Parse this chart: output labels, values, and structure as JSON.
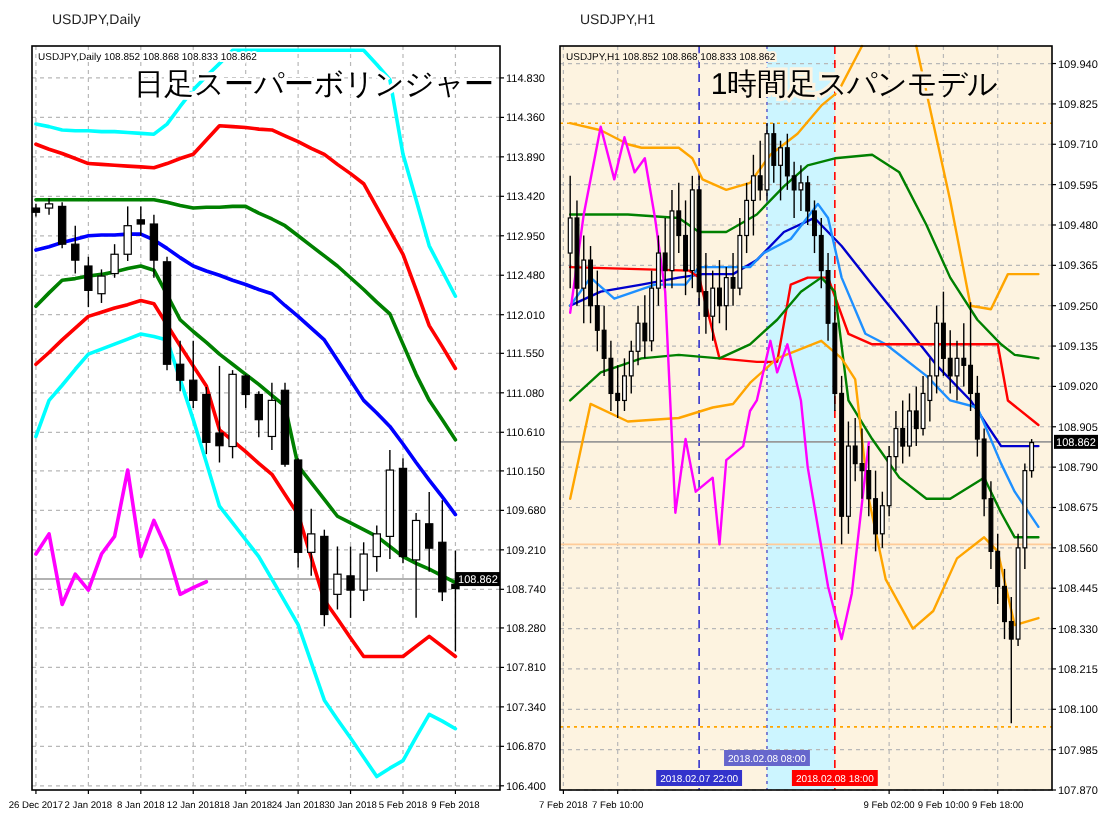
{
  "chart_data": [
    {
      "type": "candlestick",
      "title": "USDJPY,Daily",
      "subtitle": "USDJPY,Daily  108.852 108.868 108.833 108.862",
      "annotations": [
        "日足スーパーボリンジャー"
      ],
      "categories": [
        "26 Dec 2017",
        null,
        null,
        null,
        "2 Jan 2018",
        null,
        null,
        null,
        "8 Jan 2018",
        null,
        null,
        null,
        "12 Jan 2018",
        null,
        null,
        null,
        "18 Jan 2018",
        null,
        null,
        null,
        "24 Jan 2018",
        null,
        null,
        null,
        "30 Jan 2018",
        null,
        null,
        null,
        "5 Feb 2018",
        null,
        null,
        null,
        "9 Feb 2018"
      ],
      "ohlc": [
        [
          113.28,
          113.33,
          113.18,
          113.23
        ],
        [
          113.28,
          113.4,
          113.2,
          113.33
        ],
        [
          113.3,
          113.35,
          112.8,
          112.85
        ],
        [
          112.85,
          113.07,
          112.5,
          112.66
        ],
        [
          112.59,
          112.7,
          112.1,
          112.3
        ],
        [
          112.26,
          112.55,
          112.15,
          112.47
        ],
        [
          112.5,
          112.85,
          112.45,
          112.73
        ],
        [
          112.73,
          113.3,
          112.65,
          113.07
        ],
        [
          113.14,
          113.3,
          112.95,
          113.09
        ],
        [
          113.09,
          113.2,
          112.45,
          112.66
        ],
        [
          112.64,
          112.7,
          111.35,
          111.42
        ],
        [
          111.42,
          111.7,
          111.1,
          111.23
        ],
        [
          111.23,
          111.7,
          110.9,
          110.99
        ],
        [
          111.06,
          111.15,
          110.35,
          110.49
        ],
        [
          110.6,
          111.4,
          110.25,
          110.45
        ],
        [
          110.44,
          111.35,
          110.3,
          111.3
        ],
        [
          111.28,
          111.3,
          110.9,
          111.06
        ],
        [
          111.06,
          111.1,
          110.55,
          110.76
        ],
        [
          110.56,
          111.2,
          110.4,
          110.99
        ],
        [
          111.11,
          111.2,
          110.2,
          110.23
        ],
        [
          110.28,
          110.3,
          109.0,
          109.18
        ],
        [
          109.18,
          109.7,
          108.9,
          109.4
        ],
        [
          109.37,
          109.45,
          108.3,
          108.44
        ],
        [
          108.68,
          109.25,
          108.5,
          108.92
        ],
        [
          108.9,
          109.25,
          108.4,
          108.73
        ],
        [
          108.73,
          109.3,
          108.6,
          109.16
        ],
        [
          109.13,
          109.5,
          108.95,
          109.4
        ],
        [
          109.37,
          110.4,
          109.1,
          110.16
        ],
        [
          110.18,
          110.3,
          109.05,
          109.13
        ],
        [
          109.09,
          109.65,
          108.4,
          109.56
        ],
        [
          109.52,
          109.9,
          108.95,
          109.23
        ],
        [
          109.3,
          109.8,
          108.6,
          108.71
        ],
        [
          108.8,
          109.2,
          108.0,
          108.75
        ]
      ],
      "series": [
        {
          "type": "line",
          "color": "#00ffff",
          "values": [
            114.28,
            114.25,
            114.21,
            114.2,
            114.2,
            114.19,
            114.19,
            114.18,
            114.17,
            114.16,
            114.28,
            114.49,
            114.69,
            114.85,
            115.0,
            115.16,
            115.16,
            115.16,
            115.16,
            115.16,
            115.16,
            115.16,
            115.16,
            115.16,
            115.16,
            115.16,
            114.99,
            114.81,
            113.92,
            113.38,
            112.83,
            112.53,
            112.23
          ]
        },
        {
          "type": "line",
          "color": "#ff0000",
          "values": [
            114.04,
            113.98,
            113.93,
            113.87,
            113.81,
            113.8,
            113.79,
            113.78,
            113.77,
            113.76,
            113.81,
            113.87,
            113.92,
            114.09,
            114.26,
            114.25,
            114.24,
            114.22,
            114.21,
            114.14,
            114.07,
            113.99,
            113.92,
            113.8,
            113.69,
            113.57,
            113.29,
            113.01,
            112.73,
            112.31,
            111.88,
            111.63,
            111.37
          ]
        },
        {
          "type": "line",
          "color": "#008000",
          "values": [
            113.38,
            113.38,
            113.38,
            113.38,
            113.38,
            113.38,
            113.38,
            113.38,
            113.38,
            113.38,
            113.35,
            113.31,
            113.28,
            113.29,
            113.29,
            113.3,
            113.3,
            113.22,
            113.15,
            113.07,
            112.95,
            112.83,
            112.71,
            112.59,
            112.45,
            112.31,
            112.16,
            112.02,
            111.66,
            111.3,
            110.99,
            110.76,
            110.52
          ]
        },
        {
          "type": "line",
          "color": "#0000ff",
          "values": [
            112.78,
            112.82,
            112.87,
            112.91,
            112.95,
            112.96,
            112.96,
            112.97,
            112.97,
            112.9,
            112.8,
            112.69,
            112.59,
            112.53,
            112.48,
            112.42,
            112.37,
            112.31,
            112.26,
            112.12,
            111.99,
            111.85,
            111.71,
            111.47,
            111.23,
            110.99,
            110.84,
            110.68,
            110.47,
            110.25,
            110.04,
            109.84,
            109.63
          ]
        },
        {
          "type": "line",
          "color": "#008000",
          "values": [
            112.11,
            112.27,
            112.42,
            112.44,
            112.47,
            112.49,
            112.52,
            112.56,
            112.59,
            112.54,
            112.25,
            111.95,
            111.81,
            111.68,
            111.54,
            111.42,
            111.3,
            111.18,
            111.05,
            110.92,
            110.21,
            110.01,
            109.81,
            109.61,
            109.53,
            109.45,
            109.37,
            109.25,
            109.13,
            109.05,
            108.98,
            108.9,
            108.82
          ]
        },
        {
          "type": "line",
          "color": "#ff0000",
          "values": [
            111.42,
            111.56,
            111.71,
            111.85,
            111.99,
            112.04,
            112.09,
            112.13,
            112.18,
            112.14,
            111.89,
            111.64,
            111.4,
            111.16,
            110.64,
            110.51,
            110.38,
            110.24,
            110.11,
            109.87,
            109.63,
            109.12,
            108.61,
            108.39,
            108.16,
            107.94,
            107.94,
            107.94,
            107.94,
            108.06,
            108.18,
            108.06,
            107.94
          ]
        },
        {
          "type": "line",
          "color": "#00ffff",
          "values": [
            110.56,
            110.99,
            111.17,
            111.36,
            111.54,
            111.6,
            111.66,
            111.72,
            111.78,
            111.75,
            111.71,
            111.24,
            110.76,
            110.25,
            109.73,
            109.53,
            109.33,
            109.13,
            108.86,
            108.59,
            108.32,
            107.87,
            107.42,
            107.19,
            106.97,
            106.74,
            106.51,
            106.61,
            106.7,
            106.98,
            107.25,
            107.17,
            107.08
          ]
        },
        {
          "type": "line",
          "color": "#ff00ff",
          "values": [
            109.16,
            109.4,
            108.56,
            108.92,
            108.73,
            109.16,
            109.37,
            110.16,
            109.13,
            109.56,
            109.21,
            108.68,
            108.76,
            108.83,
            null,
            null,
            null,
            null,
            null,
            null,
            null,
            null,
            null,
            null,
            null,
            null,
            null,
            null,
            null,
            null,
            null,
            null,
            null
          ]
        }
      ],
      "ylim": [
        106.35,
        115.21
      ],
      "yticks": [
        {
          "value": 114.83,
          "label": "114.830"
        },
        {
          "value": 114.36,
          "label": "114.360"
        },
        {
          "value": 113.89,
          "label": "113.890"
        },
        {
          "value": 113.42,
          "label": "113.420"
        },
        {
          "value": 112.95,
          "label": "112.950"
        },
        {
          "value": 112.48,
          "label": "112.480"
        },
        {
          "value": 112.01,
          "label": "112.010"
        },
        {
          "value": 111.55,
          "label": "111.550"
        },
        {
          "value": 111.08,
          "label": "111.080"
        },
        {
          "value": 110.61,
          "label": "110.610"
        },
        {
          "value": 110.15,
          "label": "110.150"
        },
        {
          "value": 109.68,
          "label": "109.680"
        },
        {
          "value": 109.21,
          "label": "109.210"
        },
        {
          "value": 108.74,
          "label": "108.740"
        },
        {
          "value": 108.28,
          "label": "108.280"
        },
        {
          "value": 107.81,
          "label": "107.810"
        },
        {
          "value": 107.34,
          "label": "107.340"
        },
        {
          "value": 106.87,
          "label": "106.870"
        },
        {
          "value": 106.4,
          "label": "106.400"
        }
      ],
      "ref_lines": [
        {
          "axis": "y",
          "value": 108.862,
          "label": "108.862",
          "color": "#999999",
          "line_style": "solid"
        }
      ],
      "grid": true
    },
    {
      "type": "candlestick",
      "title": "USDJPY,H1",
      "subtitle": "USDJPY,H1  108.852 108.868 108.833 108.862",
      "annotations": [
        "1時間足スパンモデル"
      ],
      "x": [
        "2018-02-07T03:00",
        "2018-02-07T04:00",
        "2018-02-07T05:00",
        "2018-02-07T06:00",
        "2018-02-07T07:00",
        "2018-02-07T08:00",
        "2018-02-07T09:00",
        "2018-02-07T10:00",
        "2018-02-07T11:00",
        "2018-02-07T12:00",
        "2018-02-07T13:00",
        "2018-02-07T14:00",
        "2018-02-07T15:00",
        "2018-02-07T16:00",
        "2018-02-07T17:00",
        "2018-02-07T18:00",
        "2018-02-07T19:00",
        "2018-02-07T20:00",
        "2018-02-07T21:00",
        "2018-02-07T22:00",
        "2018-02-07T23:00",
        "2018-02-08T00:00",
        "2018-02-08T01:00",
        "2018-02-08T02:00",
        "2018-02-08T03:00",
        "2018-02-08T04:00",
        "2018-02-08T05:00",
        "2018-02-08T06:00",
        "2018-02-08T07:00",
        "2018-02-08T08:00",
        "2018-02-08T09:00",
        "2018-02-08T10:00",
        "2018-02-08T11:00",
        "2018-02-08T12:00",
        "2018-02-08T13:00",
        "2018-02-08T14:00",
        "2018-02-08T15:00",
        "2018-02-08T16:00",
        "2018-02-08T17:00",
        "2018-02-08T18:00",
        "2018-02-08T19:00",
        "2018-02-08T20:00",
        "2018-02-08T21:00",
        "2018-02-08T22:00",
        "2018-02-08T23:00",
        "2018-02-09T00:00",
        "2018-02-09T01:00",
        "2018-02-09T02:00",
        "2018-02-09T03:00",
        "2018-02-09T04:00",
        "2018-02-09T05:00",
        "2018-02-09T06:00",
        "2018-02-09T07:00",
        "2018-02-09T08:00",
        "2018-02-09T09:00",
        "2018-02-09T10:00",
        "2018-02-09T11:00",
        "2018-02-09T12:00",
        "2018-02-09T13:00",
        "2018-02-09T14:00",
        "2018-02-09T15:00",
        "2018-02-09T16:00",
        "2018-02-09T17:00",
        "2018-02-09T18:00",
        "2018-02-09T19:00",
        "2018-02-09T20:00",
        "2018-02-09T21:00",
        "2018-02-09T22:00",
        "2018-02-09T23:00"
      ],
      "ohlc": [
        [
          109.4,
          109.62,
          109.3,
          109.5
        ],
        [
          109.5,
          109.55,
          109.25,
          109.3
        ],
        [
          109.3,
          109.45,
          109.2,
          109.38
        ],
        [
          109.38,
          109.42,
          109.2,
          109.25
        ],
        [
          109.25,
          109.35,
          109.12,
          109.18
        ],
        [
          109.18,
          109.25,
          109.05,
          109.1
        ],
        [
          109.1,
          109.15,
          108.95,
          109.0
        ],
        [
          109.0,
          109.08,
          108.93,
          108.98
        ],
        [
          108.98,
          109.1,
          108.95,
          109.05
        ],
        [
          109.05,
          109.15,
          109.0,
          109.12
        ],
        [
          109.12,
          109.25,
          109.08,
          109.2
        ],
        [
          109.2,
          109.28,
          109.1,
          109.15
        ],
        [
          109.15,
          109.35,
          109.12,
          109.3
        ],
        [
          109.3,
          109.45,
          109.25,
          109.4
        ],
        [
          109.4,
          109.5,
          109.3,
          109.35
        ],
        [
          109.35,
          109.58,
          109.3,
          109.52
        ],
        [
          109.52,
          109.6,
          109.4,
          109.45
        ],
        [
          109.45,
          109.55,
          109.28,
          109.35
        ],
        [
          109.35,
          109.62,
          109.3,
          109.58
        ],
        [
          109.58,
          109.62,
          109.25,
          109.29
        ],
        [
          109.29,
          109.4,
          109.17,
          109.22
        ],
        [
          109.22,
          109.35,
          109.15,
          109.3
        ],
        [
          109.3,
          109.38,
          109.2,
          109.25
        ],
        [
          109.25,
          109.36,
          109.18,
          109.33
        ],
        [
          109.33,
          109.4,
          109.25,
          109.3
        ],
        [
          109.3,
          109.5,
          109.28,
          109.45
        ],
        [
          109.45,
          109.6,
          109.4,
          109.55
        ],
        [
          109.55,
          109.68,
          109.45,
          109.62
        ],
        [
          109.62,
          109.72,
          109.55,
          109.58
        ],
        [
          109.58,
          109.77,
          109.55,
          109.74
        ],
        [
          109.74,
          109.77,
          109.6,
          109.65
        ],
        [
          109.65,
          109.72,
          109.55,
          109.7
        ],
        [
          109.7,
          109.74,
          109.58,
          109.62
        ],
        [
          109.62,
          109.66,
          109.5,
          109.58
        ],
        [
          109.58,
          109.65,
          109.52,
          109.6
        ],
        [
          109.6,
          109.62,
          109.48,
          109.52
        ],
        [
          109.52,
          109.55,
          109.4,
          109.45
        ],
        [
          109.45,
          109.5,
          109.3,
          109.35
        ],
        [
          109.35,
          109.4,
          109.15,
          109.2
        ],
        [
          109.2,
          109.25,
          108.95,
          109.0
        ],
        [
          109.0,
          109.05,
          108.57,
          108.65
        ],
        [
          108.65,
          108.92,
          108.6,
          108.85
        ],
        [
          108.85,
          108.93,
          108.75,
          108.8
        ],
        [
          108.8,
          108.9,
          108.7,
          108.78
        ],
        [
          108.78,
          108.85,
          108.65,
          108.7
        ],
        [
          108.7,
          108.78,
          108.55,
          108.6
        ],
        [
          108.6,
          108.72,
          108.56,
          108.68
        ],
        [
          108.68,
          108.85,
          108.65,
          108.82
        ],
        [
          108.82,
          108.95,
          108.78,
          108.9
        ],
        [
          108.9,
          108.98,
          108.8,
          108.85
        ],
        [
          108.85,
          109.0,
          108.82,
          108.95
        ],
        [
          108.95,
          109.02,
          108.85,
          108.9
        ],
        [
          108.9,
          109.05,
          108.88,
          109.0
        ],
        [
          108.98,
          109.1,
          108.92,
          109.05
        ],
        [
          109.05,
          109.25,
          109.0,
          109.2
        ],
        [
          109.2,
          109.29,
          109.05,
          109.1
        ],
        [
          109.1,
          109.18,
          109.0,
          109.05
        ],
        [
          109.05,
          109.15,
          108.98,
          109.1
        ],
        [
          109.1,
          109.2,
          109.02,
          109.08
        ],
        [
          109.08,
          109.26,
          108.95,
          109.0
        ],
        [
          109.0,
          109.05,
          108.82,
          108.87
        ],
        [
          108.87,
          108.9,
          108.65,
          108.7
        ],
        [
          108.7,
          108.75,
          108.5,
          108.55
        ],
        [
          108.55,
          108.6,
          108.4,
          108.45
        ],
        [
          108.45,
          108.5,
          108.3,
          108.35
        ],
        [
          108.35,
          108.42,
          108.06,
          108.3
        ],
        [
          108.3,
          108.6,
          108.28,
          108.56
        ],
        [
          108.56,
          108.8,
          108.5,
          108.78
        ],
        [
          108.78,
          108.87,
          108.76,
          108.86
        ]
      ],
      "series": [
        {
          "type": "line",
          "color": "#ffa500",
          "x": [
            "2018-02-07T03:00",
            "2018-02-07T07:30",
            "2018-02-07T11:30",
            "2018-02-07T13:30",
            "2018-02-07T19:00",
            "2018-02-07T21:00",
            "2018-02-07T22:30",
            "2018-02-08T02:00",
            "2018-02-08T05:30",
            "2018-02-08T08:30",
            "2018-02-08T12:30",
            "2018-02-08T16:00",
            "2018-02-08T18:30",
            "2018-02-08T22:00"
          ],
          "values": [
            109.77,
            109.75,
            109.71,
            109.7,
            109.7,
            109.67,
            109.61,
            109.58,
            109.6,
            109.68,
            109.74,
            109.82,
            109.86,
            109.99
          ]
        },
        {
          "type": "line",
          "color": "#ffa500",
          "x": [
            "2018-02-09T06:00",
            "2018-02-09T11:00",
            "2018-02-09T14:00",
            "2018-02-09T17:00",
            "2018-02-09T19:30",
            "2018-02-10T00:00"
          ],
          "values": [
            109.99,
            109.55,
            109.25,
            109.24,
            109.34,
            109.34
          ]
        },
        {
          "type": "line",
          "color": "#008000",
          "x": [
            "2018-02-07T03:00",
            "2018-02-07T11:30",
            "2018-02-07T19:00",
            "2018-02-07T22:00",
            "2018-02-08T02:00",
            "2018-02-08T06:30",
            "2018-02-08T10:30",
            "2018-02-08T14:00",
            "2018-02-08T18:00",
            "2018-02-08T23:30",
            "2018-02-09T03:30",
            "2018-02-09T07:30",
            "2018-02-09T11:00",
            "2018-02-09T15:00",
            "2018-02-09T18:30",
            "2018-02-09T20:30",
            "2018-02-10T00:00"
          ],
          "values": [
            109.51,
            109.51,
            109.5,
            109.46,
            109.46,
            109.51,
            109.59,
            109.65,
            109.67,
            109.68,
            109.63,
            109.48,
            109.33,
            109.21,
            109.14,
            109.11,
            109.1
          ]
        },
        {
          "type": "line",
          "color": "#0000cd",
          "x": [
            "2018-02-07T03:00",
            "2018-02-07T07:30",
            "2018-02-07T13:30",
            "2018-02-07T19:00",
            "2018-02-07T22:30",
            "2018-02-08T03:00",
            "2018-02-08T06:30",
            "2018-02-08T10:30",
            "2018-02-08T15:00",
            "2018-02-08T19:00",
            "2018-02-08T23:30",
            "2018-02-09T04:30",
            "2018-02-09T09:00",
            "2018-02-09T14:00",
            "2018-02-09T18:30",
            "2018-02-10T00:00"
          ],
          "values": [
            109.25,
            109.29,
            109.31,
            109.33,
            109.34,
            109.34,
            109.38,
            109.46,
            109.5,
            109.42,
            109.31,
            109.19,
            109.08,
            108.98,
            108.85,
            108.85
          ]
        },
        {
          "type": "line",
          "color": "#1e90ff",
          "x": [
            "2018-02-07T03:00",
            "2018-02-07T06:00",
            "2018-02-07T09:30",
            "2018-02-07T15:30",
            "2018-02-07T20:00",
            "2018-02-07T22:00",
            "2018-02-08T02:00",
            "2018-02-08T05:30",
            "2018-02-08T07:30",
            "2018-02-08T11:30",
            "2018-02-08T15:30",
            "2018-02-08T17:00",
            "2018-02-08T19:00",
            "2018-02-08T22:30",
            "2018-02-09T01:30",
            "2018-02-09T07:30",
            "2018-02-09T11:00",
            "2018-02-09T15:00",
            "2018-02-09T18:30",
            "2018-02-09T20:30",
            "2018-02-10T00:00"
          ],
          "values": [
            109.25,
            109.33,
            109.27,
            109.31,
            109.31,
            109.36,
            109.36,
            109.36,
            109.4,
            109.44,
            109.54,
            109.5,
            109.33,
            109.17,
            109.14,
            109.05,
            108.98,
            108.96,
            108.8,
            108.72,
            108.62
          ]
        },
        {
          "type": "line",
          "color": "#ff0000",
          "x": [
            "2018-02-07T03:00",
            "2018-02-07T20:30",
            "2018-02-07T22:00",
            "2018-02-08T01:00",
            "2018-02-08T06:30",
            "2018-02-08T09:30",
            "2018-02-08T11:30",
            "2018-02-08T14:00",
            "2018-02-08T17:00",
            "2018-02-08T20:00",
            "2018-02-08T23:30",
            "2018-02-09T09:00",
            "2018-02-09T18:00",
            "2018-02-09T19:30",
            "2018-02-10T00:00"
          ],
          "values": [
            109.36,
            109.35,
            109.33,
            109.1,
            109.09,
            109.09,
            109.31,
            109.33,
            109.33,
            109.17,
            109.14,
            109.14,
            109.14,
            108.98,
            108.91
          ]
        },
        {
          "type": "line",
          "color": "#008000",
          "x": [
            "2018-02-07T03:00",
            "2018-02-07T07:30",
            "2018-02-07T13:30",
            "2018-02-07T19:00",
            "2018-02-08T01:00",
            "2018-02-08T05:30",
            "2018-02-08T09:30",
            "2018-02-08T13:00",
            "2018-02-08T16:00",
            "2018-02-08T18:00",
            "2018-02-08T20:00",
            "2018-02-08T23:30",
            "2018-02-09T03:30",
            "2018-02-09T07:30",
            "2018-02-09T11:00",
            "2018-02-09T16:00",
            "2018-02-09T18:30",
            "2018-02-09T20:30",
            "2018-02-10T00:00"
          ],
          "values": [
            108.98,
            109.06,
            109.1,
            109.11,
            109.1,
            109.14,
            109.21,
            109.29,
            109.33,
            109.29,
            108.98,
            108.87,
            108.76,
            108.7,
            108.7,
            108.76,
            108.66,
            108.59,
            108.59
          ]
        },
        {
          "type": "line",
          "color": "#ffa500",
          "x": [
            "2018-02-07T03:00",
            "2018-02-07T06:00",
            "2018-02-07T11:30",
            "2018-02-07T19:00",
            "2018-02-08T00:00",
            "2018-02-08T03:00",
            "2018-02-08T05:30",
            "2018-02-08T09:30",
            "2018-02-08T16:00",
            "2018-02-08T19:00",
            "2018-02-08T21:00",
            "2018-02-08T23:00",
            "2018-02-09T01:30",
            "2018-02-09T05:30",
            "2018-02-09T08:30",
            "2018-02-09T12:00",
            "2018-02-09T16:00",
            "2018-02-09T18:00",
            "2018-02-09T20:30",
            "2018-02-10T00:00"
          ],
          "values": [
            108.7,
            108.97,
            108.92,
            108.93,
            108.96,
            108.97,
            109.03,
            109.1,
            109.15,
            109.1,
            109.04,
            108.7,
            108.47,
            108.33,
            108.38,
            108.53,
            108.59,
            108.55,
            108.34,
            108.36
          ]
        },
        {
          "type": "line",
          "color": "#ff00ff",
          "x": [
            "2018-02-07T03:00",
            "2018-02-07T05:00",
            "2018-02-07T07:30",
            "2018-02-07T09:30",
            "2018-02-07T11:00",
            "2018-02-07T12:30",
            "2018-02-07T14:00",
            "2018-02-07T15:30",
            "2018-02-07T17:00",
            "2018-02-07T18:30",
            "2018-02-07T20:00",
            "2018-02-07T21:30",
            "2018-02-08T00:00",
            "2018-02-08T01:00",
            "2018-02-08T02:00",
            "2018-02-08T04:30",
            "2018-02-08T05:30",
            "2018-02-08T06:30",
            "2018-02-08T08:30",
            "2018-02-08T09:30",
            "2018-02-08T11:00",
            "2018-02-08T12:30",
            "2018-02-08T13:00",
            "2018-02-08T14:00",
            "2018-02-08T17:00",
            "2018-02-08T19:00",
            "2018-02-08T20:30",
            "2018-02-08T23:00"
          ],
          "values": [
            109.23,
            109.51,
            109.76,
            109.61,
            109.73,
            109.63,
            109.67,
            109.5,
            109.29,
            108.66,
            108.87,
            108.72,
            108.76,
            108.57,
            108.81,
            108.85,
            108.95,
            108.98,
            109.15,
            109.06,
            109.14,
            109.02,
            108.98,
            108.79,
            108.45,
            108.3,
            108.43,
            108.86
          ]
        }
      ],
      "xlim": [
        "2018-02-07T01:30",
        "2018-02-10T02:00"
      ],
      "ylim": [
        107.87,
        109.99
      ],
      "xticks": [
        {
          "value": "2018-02-07T02:00",
          "label": "7 Feb 2018"
        },
        {
          "value": "2018-02-07T10:00",
          "label": "7 Feb 10:00"
        },
        {
          "value": "2018-02-09T02:00",
          "label": "9 Feb 02:00"
        },
        {
          "value": "2018-02-09T10:00",
          "label": "9 Feb 10:00"
        },
        {
          "value": "2018-02-09T18:00",
          "label": "9 Feb 18:00"
        }
      ],
      "yticks": [
        {
          "value": 109.94,
          "label": "109.940"
        },
        {
          "value": 109.825,
          "label": "109.825"
        },
        {
          "value": 109.71,
          "label": "109.710"
        },
        {
          "value": 109.595,
          "label": "109.595"
        },
        {
          "value": 109.48,
          "label": "109.480"
        },
        {
          "value": 109.365,
          "label": "109.365"
        },
        {
          "value": 109.25,
          "label": "109.250"
        },
        {
          "value": 109.135,
          "label": "109.135"
        },
        {
          "value": 109.02,
          "label": "109.020"
        },
        {
          "value": 108.905,
          "label": "108.905"
        },
        {
          "value": 108.79,
          "label": "108.790"
        },
        {
          "value": 108.675,
          "label": "108.675"
        },
        {
          "value": 108.56,
          "label": "108.560"
        },
        {
          "value": 108.445,
          "label": "108.445"
        },
        {
          "value": 108.33,
          "label": "108.330"
        },
        {
          "value": 108.215,
          "label": "108.215"
        },
        {
          "value": 108.1,
          "label": "108.100"
        },
        {
          "value": 107.985,
          "label": "107.985"
        },
        {
          "value": 107.87,
          "label": "107.870"
        }
      ],
      "bands": [
        {
          "axis": "x",
          "from": "2018-02-08T08:00",
          "to": "2018-02-08T18:00",
          "color": "#ccf5ff"
        }
      ],
      "ref_lines": [
        {
          "axis": "x",
          "value": "2018-02-07T22:00",
          "label": "2018.02.07 22:00",
          "color": "#3333cc",
          "line_style": "dashed"
        },
        {
          "axis": "x",
          "value": "2018-02-08T08:00",
          "label": "2018.02.08 08:00",
          "color": "#6666cc",
          "line_style": "dotted"
        },
        {
          "axis": "x",
          "value": "2018-02-08T18:00",
          "label": "2018.02.08 18:00",
          "color": "#ff0000",
          "line_style": "dashed"
        },
        {
          "axis": "y",
          "value": 109.77,
          "color": "#ffa500",
          "line_style": "dotted"
        },
        {
          "axis": "y",
          "value": 108.57,
          "color": "#ffcc99",
          "line_style": "solid"
        },
        {
          "axis": "y",
          "value": 108.05,
          "color": "#ffa500",
          "line_style": "dotted"
        },
        {
          "axis": "y",
          "value": 108.862,
          "label": "108.862",
          "color": "#999999",
          "line_style": "solid"
        }
      ],
      "grid": true
    }
  ]
}
